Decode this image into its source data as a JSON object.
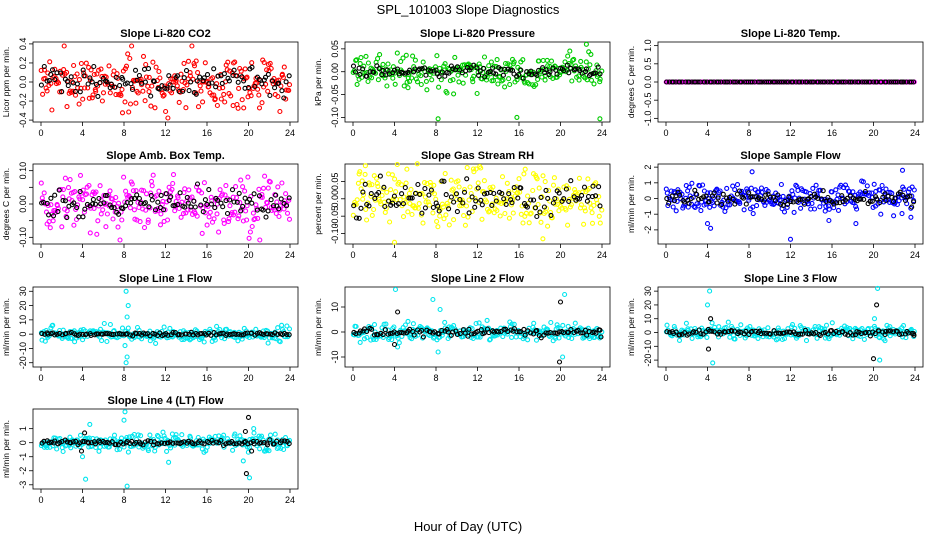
{
  "figure": {
    "title": "SPL_101003  Slope Diagnostics",
    "xlabel": "Hour of Day (UTC)"
  },
  "chart_data": [
    {
      "type": "scatter",
      "title": "Slope Li-820 CO2",
      "ylabel": "Licor ppm per min.",
      "color": "#ff0000",
      "xlim": [
        0,
        24
      ],
      "ylim": [
        -0.42,
        0.42
      ],
      "xticks": [
        0,
        4,
        8,
        12,
        16,
        20,
        24
      ],
      "yticks": [
        -0.4,
        -0.2,
        0.0,
        0.2,
        0.4
      ],
      "ytick_labels": [
        "-0.4",
        "-0.2",
        "0.0",
        "0.2",
        "0.4"
      ],
      "series": [
        {
          "name": "all",
          "noise": 0.14,
          "spikes": []
        },
        {
          "name": "hourly",
          "color": "#000000",
          "noise": 0.07,
          "spikes": []
        }
      ]
    },
    {
      "type": "scatter",
      "title": "Slope Li-820 Pressure",
      "ylabel": "kPa per min.",
      "color": "#00cc00",
      "xlim": [
        0,
        24
      ],
      "ylim": [
        -0.11,
        0.065
      ],
      "xticks": [
        0,
        4,
        8,
        12,
        16,
        20,
        24
      ],
      "yticks": [
        -0.1,
        -0.05,
        0.0,
        0.05
      ],
      "ytick_labels": [
        "-0.10",
        "-0.05",
        "0.00",
        "0.05"
      ],
      "series": [
        {
          "name": "all",
          "noise": 0.018,
          "spikes": [
            [
              5.3,
              -0.035
            ],
            [
              8.2,
              -0.103
            ],
            [
              15.8,
              -0.1
            ],
            [
              20.9,
              0.045
            ],
            [
              23.8,
              -0.103
            ],
            [
              22.5,
              0.06
            ]
          ]
        },
        {
          "name": "hourly",
          "color": "#000000",
          "noise": 0.006,
          "spikes": []
        }
      ]
    },
    {
      "type": "scatter",
      "title": "Slope Li-820 Temp.",
      "ylabel": "degrees C per min.",
      "color": "#ff00ff",
      "xlim": [
        0,
        24
      ],
      "ylim": [
        -1.1,
        1.1
      ],
      "xticks": [
        0,
        4,
        8,
        12,
        16,
        20,
        24
      ],
      "yticks": [
        -1.0,
        -0.5,
        0.0,
        0.5,
        1.0
      ],
      "ytick_labels": [
        "-1.0",
        "-0.5",
        "0.0",
        "0.5",
        "1.0"
      ],
      "series": [
        {
          "name": "all",
          "noise": 0.0,
          "spikes": []
        },
        {
          "name": "hourly",
          "color": "#000000",
          "noise": 0.0,
          "spikes": []
        }
      ]
    },
    {
      "type": "scatter",
      "title": "Slope Amb. Box Temp.",
      "ylabel": "degrees C per min.",
      "color": "#ff00ff",
      "xlim": [
        0,
        24
      ],
      "ylim": [
        -0.12,
        0.12
      ],
      "xticks": [
        0,
        4,
        8,
        12,
        16,
        20,
        24
      ],
      "yticks": [
        -0.1,
        -0.05,
        0.0,
        0.05,
        0.1
      ],
      "ytick_labels": [
        "-0.10",
        "0.00",
        "0.10"
      ],
      "ytick_label_values": [
        -0.1,
        0.0,
        0.1
      ],
      "series": [
        {
          "name": "all",
          "noise": 0.042,
          "spikes": []
        },
        {
          "name": "hourly",
          "color": "#000000",
          "noise": 0.02,
          "spikes": []
        }
      ]
    },
    {
      "type": "scatter",
      "title": "Slope Gas Stream RH",
      "ylabel": "percent per min.",
      "color": "#ffff00",
      "xlim": [
        0,
        24
      ],
      "ylim": [
        -0.13,
        0.1
      ],
      "xticks": [
        0,
        4,
        8,
        12,
        16,
        20,
        24
      ],
      "yticks": [
        -0.1,
        -0.05,
        0.0,
        0.05
      ],
      "ytick_labels": [
        "-0.10",
        "-0.05",
        "0.00",
        "0.05"
      ],
      "series": [
        {
          "name": "all",
          "noise": 0.04,
          "spikes": [
            [
              4.0,
              -0.125
            ],
            [
              1.2,
              0.095
            ],
            [
              16.6,
              0.085
            ],
            [
              18.3,
              -0.115
            ],
            [
              5.2,
              0.085
            ]
          ]
        },
        {
          "name": "hourly",
          "color": "#000000",
          "noise": 0.025,
          "spikes": []
        }
      ]
    },
    {
      "type": "scatter",
      "title": "Slope Sample Flow",
      "ylabel": "ml/min per min.",
      "color": "#0000ff",
      "xlim": [
        0,
        24
      ],
      "ylim": [
        -2.9,
        2.2
      ],
      "xticks": [
        0,
        4,
        8,
        12,
        16,
        20,
        24
      ],
      "yticks": [
        -2,
        -1,
        0,
        1,
        2
      ],
      "ytick_labels": [
        "-2",
        "-1",
        "0",
        "1",
        "2"
      ],
      "series": [
        {
          "name": "all",
          "noise": 0.45,
          "spikes": [
            [
              4.0,
              -1.6
            ],
            [
              4.3,
              -1.9
            ],
            [
              8.3,
              1.7
            ],
            [
              12.0,
              -2.6
            ],
            [
              15.7,
              -1.4
            ],
            [
              18.3,
              -1.6
            ],
            [
              20.7,
              -1.0
            ],
            [
              22.8,
              1.8
            ],
            [
              23.6,
              -1.2
            ]
          ]
        },
        {
          "name": "hourly",
          "color": "#000000",
          "noise": 0.25,
          "spikes": []
        }
      ]
    },
    {
      "type": "scatter",
      "title": "Slope Line 1 Flow",
      "ylabel": "ml/min per min.",
      "color": "#00e5ee",
      "xlim": [
        0,
        24
      ],
      "ylim": [
        -23,
        33
      ],
      "xticks": [
        0,
        4,
        8,
        12,
        16,
        20,
        24
      ],
      "yticks": [
        -20,
        -10,
        0,
        10,
        20,
        30
      ],
      "ytick_labels": [
        "-20",
        "-10",
        "0",
        "10",
        "20",
        "30"
      ],
      "series": [
        {
          "name": "all",
          "noise": 2.5,
          "spikes": [
            [
              8.2,
              -20.0
            ],
            [
              8.3,
              -16.0
            ],
            [
              8.2,
              30.0
            ],
            [
              8.4,
              20.0
            ],
            [
              8.3,
              12.0
            ],
            [
              8.1,
              -8.0
            ]
          ]
        },
        {
          "name": "hourly",
          "color": "#000000",
          "noise": 0.5,
          "spikes": []
        }
      ]
    },
    {
      "type": "scatter",
      "title": "Slope Line 2 Flow",
      "ylabel": "ml/min per min.",
      "color": "#00e5ee",
      "xlim": [
        0,
        24
      ],
      "ylim": [
        -14,
        18
      ],
      "xticks": [
        0,
        4,
        8,
        12,
        16,
        20,
        24
      ],
      "yticks": [
        -10,
        0,
        10
      ],
      "ytick_labels": [
        "-10",
        "0",
        "10"
      ],
      "series": [
        {
          "name": "all",
          "noise": 1.8,
          "spikes": [
            [
              4.1,
              17.0
            ],
            [
              4.3,
              -6.0
            ],
            [
              7.7,
              13.0
            ],
            [
              8.2,
              -8.0
            ],
            [
              8.4,
              9.0
            ],
            [
              20.4,
              15.0
            ],
            [
              20.2,
              -10.0
            ]
          ]
        },
        {
          "name": "hourly",
          "color": "#000000",
          "noise": 0.8,
          "spikes": [
            [
              4.0,
              -5.0
            ],
            [
              4.3,
              8.0
            ],
            [
              20.0,
              12.0
            ],
            [
              19.9,
              -12.0
            ],
            [
              23.9,
              -2.0
            ]
          ]
        }
      ]
    },
    {
      "type": "scatter",
      "title": "Slope Line 3 Flow",
      "ylabel": "ml/min per min.",
      "color": "#00e5ee",
      "xlim": [
        0,
        24
      ],
      "ylim": [
        -25,
        33
      ],
      "xticks": [
        0,
        4,
        8,
        12,
        16,
        20,
        24
      ],
      "yticks": [
        -20,
        -10,
        0,
        10,
        20,
        30
      ],
      "ytick_labels": [
        "-20",
        "-10",
        "0",
        "10",
        "20",
        "30"
      ],
      "series": [
        {
          "name": "all",
          "noise": 2.5,
          "spikes": [
            [
              4.2,
              30.0
            ],
            [
              4.5,
              -22.0
            ],
            [
              4.0,
              20.0
            ],
            [
              20.4,
              32.0
            ],
            [
              20.6,
              -20.0
            ],
            [
              20.1,
              10.0
            ]
          ]
        },
        {
          "name": "hourly",
          "color": "#000000",
          "noise": 1.0,
          "spikes": [
            [
              4.1,
              -12.0
            ],
            [
              4.3,
              10.0
            ],
            [
              20.0,
              -19.0
            ],
            [
              20.3,
              20.0
            ],
            [
              23.9,
              -2.0
            ]
          ]
        }
      ]
    },
    {
      "type": "scatter",
      "title": "Slope Line 4 (LT) Flow",
      "ylabel": "ml/min per min.",
      "color": "#00e5ee",
      "xlim": [
        0,
        24
      ],
      "ylim": [
        -3.3,
        2.4
      ],
      "xticks": [
        0,
        4,
        8,
        12,
        16,
        20,
        24
      ],
      "yticks": [
        -3,
        -2,
        -1,
        0,
        1
      ],
      "ytick_labels": [
        "-3",
        "-2",
        "-1",
        "0",
        "1"
      ],
      "series": [
        {
          "name": "all",
          "noise": 0.28,
          "spikes": [
            [
              4.3,
              -2.6
            ],
            [
              4.7,
              1.3
            ],
            [
              8.1,
              2.2
            ],
            [
              8.3,
              -3.1
            ],
            [
              8.0,
              1.6
            ],
            [
              12.3,
              -1.4
            ],
            [
              20.1,
              -2.5
            ],
            [
              20.5,
              1.0
            ],
            [
              19.5,
              -1.3
            ],
            [
              4.0,
              -1.0
            ]
          ]
        },
        {
          "name": "hourly",
          "color": "#000000",
          "noise": 0.08,
          "spikes": [
            [
              3.9,
              -0.6
            ],
            [
              4.2,
              0.7
            ],
            [
              19.8,
              -2.2
            ],
            [
              20.0,
              1.8
            ],
            [
              19.7,
              0.8
            ],
            [
              20.3,
              -0.6
            ]
          ]
        }
      ]
    }
  ]
}
